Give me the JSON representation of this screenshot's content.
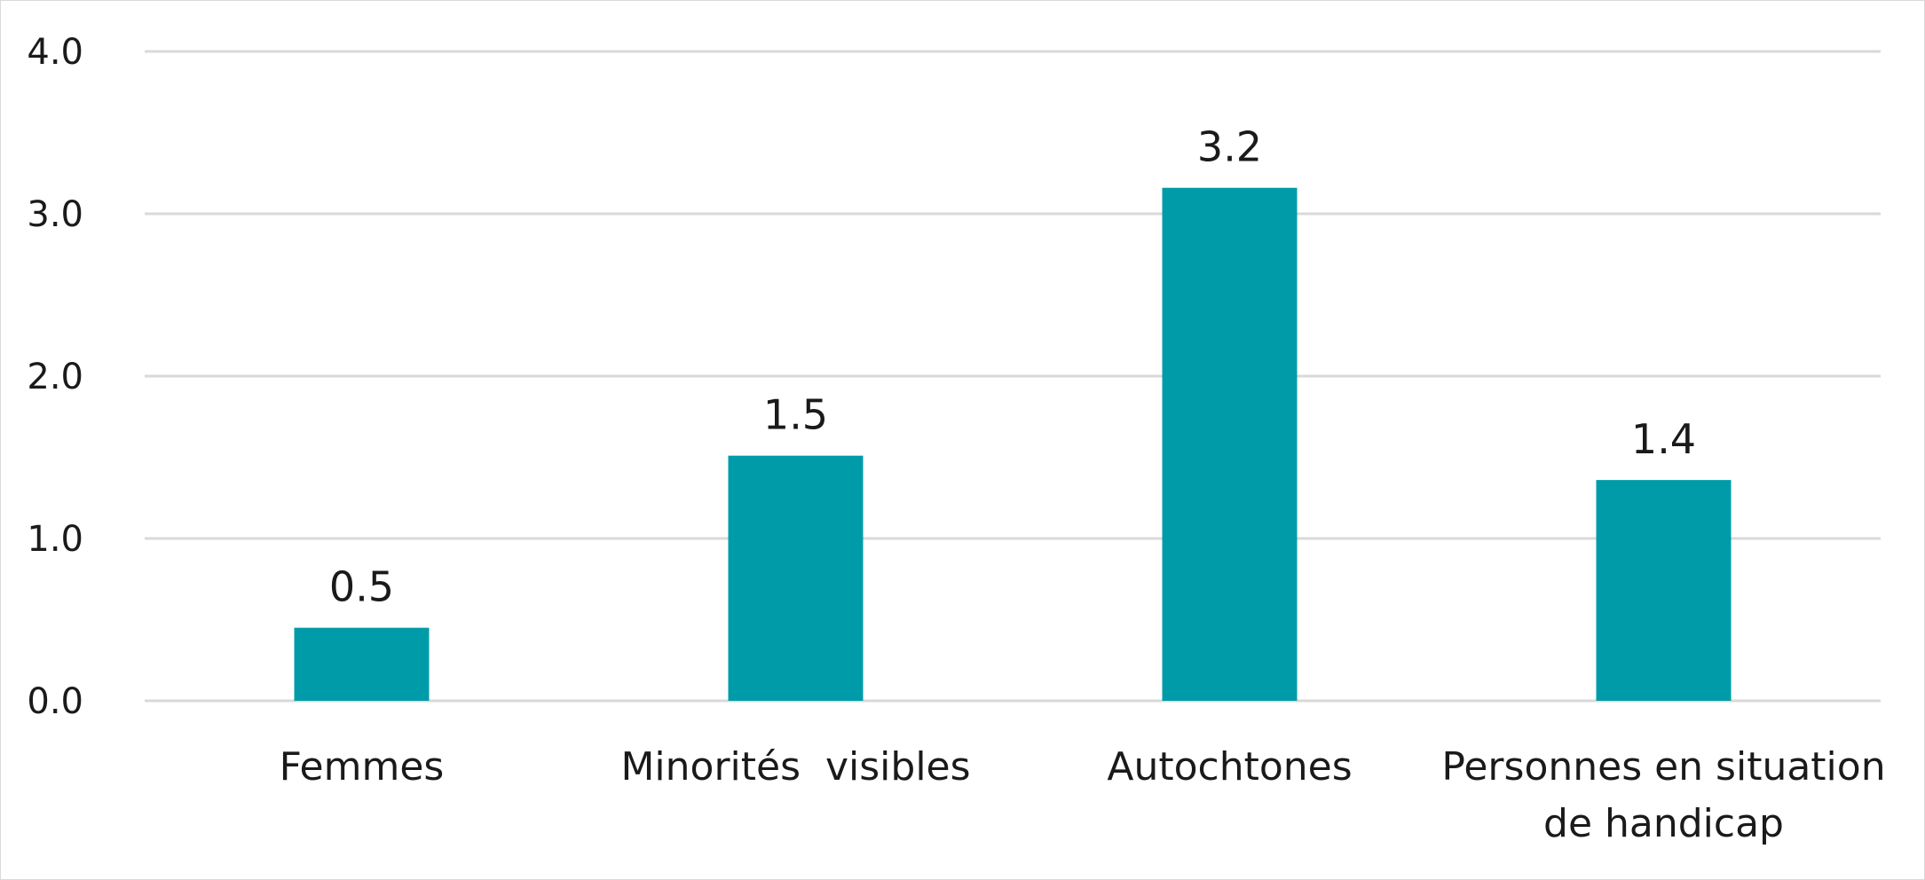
{
  "chart_data": {
    "type": "bar",
    "categories": [
      [
        "Femmes"
      ],
      [
        "Minorités  visibles"
      ],
      [
        "Autochtones"
      ],
      [
        "Personnes en situation",
        "de handicap"
      ]
    ],
    "values": [
      0.45,
      1.51,
      3.16,
      1.36
    ],
    "data_labels": [
      "0.5",
      "1.5",
      "3.2",
      "1.4"
    ],
    "title": "",
    "xlabel": "",
    "ylabel": "",
    "ylim": [
      0,
      4
    ],
    "yticks": [
      0,
      1,
      2,
      3,
      4
    ],
    "ytick_labels": [
      "0.0",
      "1.0",
      "2.0",
      "3.0",
      "4.0"
    ],
    "grid": true,
    "legend": "none",
    "bar_color": "#009BA8",
    "grid_color": "#D9D9D9"
  }
}
